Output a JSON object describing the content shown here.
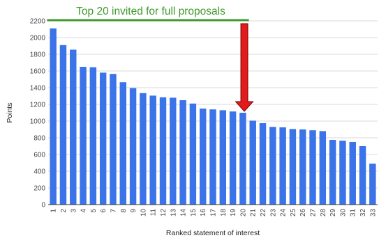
{
  "chart_data": {
    "type": "bar",
    "title": "",
    "xlabel": "Ranked statement of interest",
    "ylabel": "Points",
    "categories": [
      "1",
      "2",
      "3",
      "4",
      "5",
      "6",
      "7",
      "8",
      "9",
      "10",
      "11",
      "12",
      "13",
      "14",
      "15",
      "16",
      "17",
      "18",
      "19",
      "20",
      "21",
      "22",
      "23",
      "24",
      "25",
      "26",
      "27",
      "28",
      "29",
      "30",
      "31",
      "32",
      "33"
    ],
    "values": [
      2110,
      1910,
      1855,
      1650,
      1645,
      1580,
      1565,
      1465,
      1395,
      1335,
      1305,
      1285,
      1280,
      1250,
      1210,
      1150,
      1140,
      1130,
      1115,
      1100,
      1005,
      975,
      930,
      925,
      905,
      900,
      890,
      880,
      775,
      765,
      750,
      700,
      490
    ],
    "ylim": [
      0,
      2200
    ],
    "yticks": [
      0,
      200,
      400,
      600,
      800,
      1000,
      1200,
      1400,
      1600,
      1800,
      2000,
      2200
    ],
    "grid": true,
    "legend": "none",
    "colors": {
      "bar": "#3b73e8",
      "grid": "#d9d9d9",
      "annotation_line": "#3f9a2c",
      "annotation_text": "#3f9a2c",
      "arrow": "#e21b1b"
    },
    "annotations": {
      "cutoff_label": "Top 20 invited for full proposals",
      "bracket_from_category": "1",
      "bracket_to_category": "20",
      "arrow_category": "20"
    }
  }
}
